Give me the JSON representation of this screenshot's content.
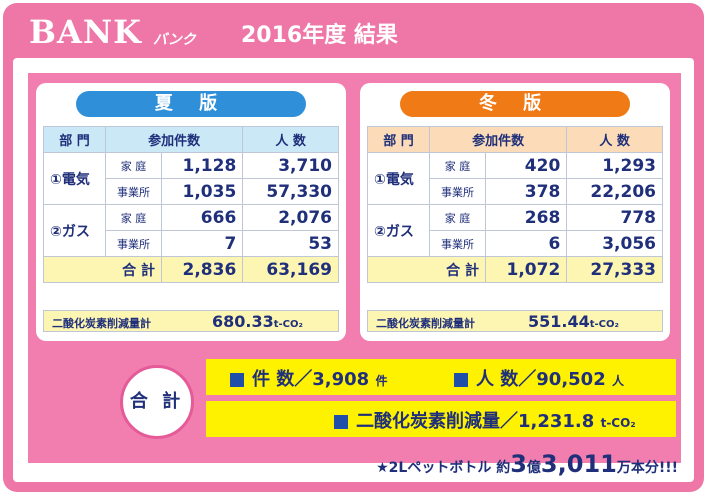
{
  "header": {
    "brand": "BANK",
    "brand_sub": "バンク",
    "title": "2016年度 結果"
  },
  "summer": {
    "label": "夏 版",
    "headers": [
      "部 門",
      "参加件数",
      "人 数"
    ],
    "electric_label": "①電気",
    "gas_label": "②ガス",
    "rows": [
      {
        "sub": "家 庭",
        "count": "1,128",
        "people": "3,710"
      },
      {
        "sub": "事業所",
        "count": "1,035",
        "people": "57,330"
      },
      {
        "sub": "家 庭",
        "count": "666",
        "people": "2,076"
      },
      {
        "sub": "事業所",
        "count": "7",
        "people": "53"
      }
    ],
    "total_label": "合 計",
    "total_count": "2,836",
    "total_people": "63,169",
    "co2_label": "二酸化炭素削減量計",
    "co2_value": "680.33",
    "co2_unit": "t-CO₂"
  },
  "winter": {
    "label": "冬 版",
    "headers": [
      "部 門",
      "参加件数",
      "人 数"
    ],
    "electric_label": "①電気",
    "gas_label": "②ガス",
    "rows": [
      {
        "sub": "家 庭",
        "count": "420",
        "people": "1,293"
      },
      {
        "sub": "事業所",
        "count": "378",
        "people": "22,206"
      },
      {
        "sub": "家 庭",
        "count": "268",
        "people": "778"
      },
      {
        "sub": "事業所",
        "count": "6",
        "people": "3,056"
      }
    ],
    "total_label": "合 計",
    "total_count": "1,072",
    "total_people": "27,333",
    "co2_label": "二酸化炭素削減量計",
    "co2_value": "551.44",
    "co2_unit": "t-CO₂"
  },
  "grand": {
    "label": "合 計",
    "count_label": "件 数／3,908",
    "count_unit": "件",
    "people_label": "人 数／90,502",
    "people_unit": "人",
    "co2_label": "二酸化炭素削減量／1,231.8",
    "co2_unit": "t-CO₂"
  },
  "note": {
    "prefix": "★2Lペットボトル 約",
    "n1": "3",
    "mid": "億",
    "n2": "3,011",
    "suffix": "万本分!!!"
  },
  "colors": {
    "frame": "#ee77a8",
    "summer": "#2f8fd8",
    "winter": "#ef7a16",
    "highlight": "#fff200",
    "text": "#1f2f7a"
  }
}
